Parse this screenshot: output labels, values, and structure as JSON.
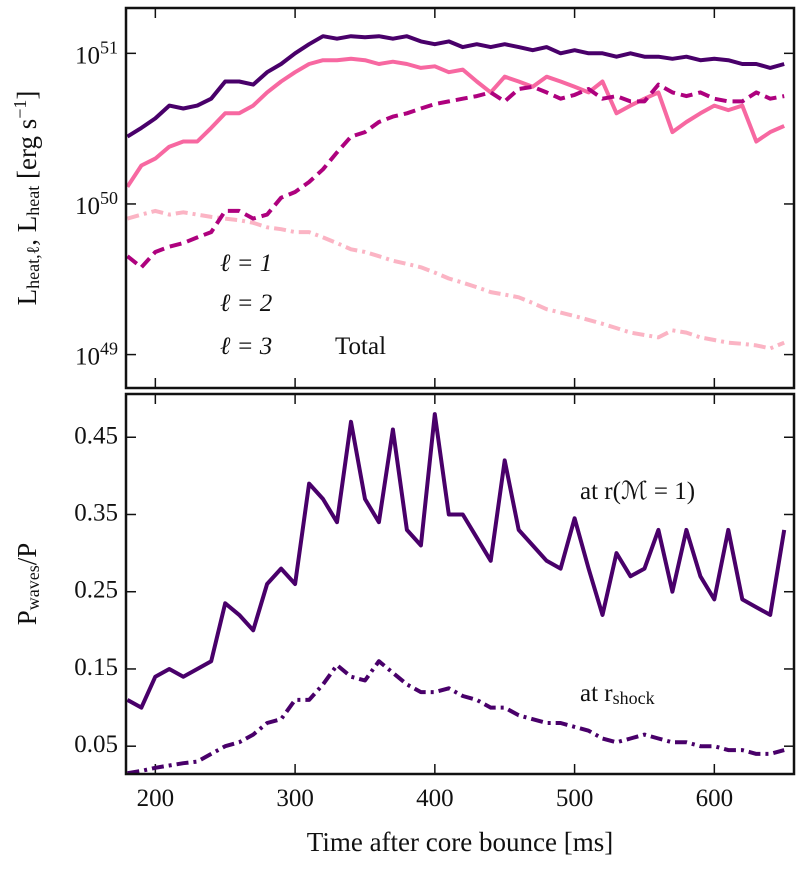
{
  "chart_data": [
    {
      "type": "line",
      "ylabel": "L_{heat,ℓ}, L_{heat} [erg s^{−1}]",
      "log_y": true,
      "xlim": [
        179,
        657
      ],
      "xticks": [
        200,
        300,
        400,
        500,
        600
      ],
      "ylim": [
        6e+48,
        2e+51
      ],
      "yticks": [
        {
          "value": 1e+49,
          "label": "10^{49}"
        },
        {
          "value": 1e+50,
          "label": "10^{50}"
        },
        {
          "value": 1e+51,
          "label": "10^{51}"
        }
      ],
      "x": [
        180,
        190,
        200,
        210,
        220,
        230,
        240,
        250,
        260,
        270,
        280,
        290,
        300,
        310,
        320,
        330,
        340,
        350,
        360,
        370,
        380,
        390,
        400,
        410,
        420,
        430,
        440,
        450,
        460,
        470,
        480,
        490,
        500,
        510,
        520,
        530,
        540,
        550,
        560,
        570,
        580,
        590,
        600,
        610,
        620,
        630,
        640,
        650
      ],
      "series": [
        {
          "name": "ℓ = 1",
          "color": "#fbb4c4",
          "linestyle": "dashdot",
          "values": [
            8e+49,
            8.5e+49,
            9e+49,
            8.5e+49,
            8.8e+49,
            8.5e+49,
            8.2e+49,
            8e+49,
            7.8e+49,
            7.5e+49,
            7e+49,
            6.8e+49,
            6.5e+49,
            6.5e+49,
            6e+49,
            5.5e+49,
            5e+49,
            4.8e+49,
            4.5e+49,
            4.2e+49,
            4e+49,
            3.8e+49,
            3.5e+49,
            3.2e+49,
            3e+49,
            2.8e+49,
            2.6e+49,
            2.5e+49,
            2.4e+49,
            2.2e+49,
            2e+49,
            1.9e+49,
            1.8e+49,
            1.7e+49,
            1.6e+49,
            1.5e+49,
            1.4e+49,
            1.35e+49,
            1.3e+49,
            1.45e+49,
            1.4e+49,
            1.3e+49,
            1.25e+49,
            1.2e+49,
            1.18e+49,
            1.15e+49,
            1.1e+49,
            1.2e+49
          ]
        },
        {
          "name": "ℓ = 2",
          "color": "#f768a1",
          "linestyle": "solid",
          "values": [
            1.3e+50,
            1.8e+50,
            2e+50,
            2.4e+50,
            2.6e+50,
            2.6e+50,
            3.2e+50,
            4e+50,
            4e+50,
            4.5e+50,
            5.5e+50,
            6.5e+50,
            7.5e+50,
            8.5e+50,
            9e+50,
            9e+50,
            9.2e+50,
            9e+50,
            8.5e+50,
            8.8e+50,
            8.5e+50,
            8e+50,
            8.2e+50,
            7.5e+50,
            7.8e+50,
            6.5e+50,
            5.5e+50,
            7e+50,
            6.5e+50,
            6e+50,
            7e+50,
            6.5e+50,
            6e+50,
            5.5e+50,
            6.5e+50,
            4e+50,
            4.5e+50,
            5e+50,
            5.5e+50,
            3e+50,
            3.5e+50,
            4e+50,
            4.5e+50,
            4.2e+50,
            4.5e+50,
            2.6e+50,
            3e+50,
            3.3e+50
          ]
        },
        {
          "name": "ℓ = 3",
          "color": "#ae017e",
          "linestyle": "dashed",
          "values": [
            4.5e+49,
            3.8e+49,
            4.8e+49,
            5.2e+49,
            5.5e+49,
            6e+49,
            6.5e+49,
            9e+49,
            9e+49,
            8e+49,
            8.5e+49,
            1.1e+50,
            1.2e+50,
            1.4e+50,
            1.7e+50,
            2.2e+50,
            2.8e+50,
            3e+50,
            3.5e+50,
            3.8e+50,
            4e+50,
            4.3e+50,
            4.6e+50,
            4.8e+50,
            5e+50,
            5.2e+50,
            5.5e+50,
            4.8e+50,
            5.8e+50,
            6e+50,
            5.5e+50,
            5e+50,
            5.3e+50,
            5.8e+50,
            5e+50,
            5.2e+50,
            4.8e+50,
            4.8e+50,
            6.2e+50,
            5.5e+50,
            5.2e+50,
            5.5e+50,
            5e+50,
            4.8e+50,
            4.8e+50,
            5.5e+50,
            5e+50,
            5.2e+50
          ]
        },
        {
          "name": "Total",
          "color": "#49006a",
          "linestyle": "solid",
          "values": [
            2.8e+50,
            3.2e+50,
            3.7e+50,
            4.5e+50,
            4.3e+50,
            4.5e+50,
            5e+50,
            6.5e+50,
            6.5e+50,
            6.2e+50,
            7.5e+50,
            8.5e+50,
            1e+51,
            1.15e+51,
            1.3e+51,
            1.25e+51,
            1.3e+51,
            1.28e+51,
            1.3e+51,
            1.25e+51,
            1.3e+51,
            1.2e+51,
            1.15e+51,
            1.2e+51,
            1.1e+51,
            1.15e+51,
            1.1e+51,
            1.15e+51,
            1.1e+51,
            1.05e+51,
            1.1e+51,
            1e+51,
            1.05e+51,
            1e+51,
            1e+51,
            9.5e+50,
            1e+51,
            9.5e+50,
            9.5e+50,
            9.2e+50,
            9.5e+50,
            9e+50,
            9.2e+50,
            9e+50,
            8.5e+50,
            8.5e+50,
            8e+50,
            8.5e+50
          ]
        }
      ]
    },
    {
      "type": "line",
      "xlabel": "Time after core bounce [ms]",
      "ylabel": "P_{waves}/P",
      "log_y": false,
      "xlim": [
        179,
        657
      ],
      "xticks": [
        200,
        300,
        400,
        500,
        600
      ],
      "ylim": [
        0.014,
        0.506
      ],
      "yticks": [
        0.05,
        0.15,
        0.25,
        0.35,
        0.45
      ],
      "x": [
        180,
        190,
        200,
        210,
        220,
        230,
        240,
        250,
        260,
        270,
        280,
        290,
        300,
        310,
        320,
        330,
        340,
        350,
        360,
        370,
        380,
        390,
        400,
        410,
        420,
        430,
        440,
        450,
        460,
        470,
        480,
        490,
        500,
        510,
        520,
        530,
        540,
        550,
        560,
        570,
        580,
        590,
        600,
        610,
        620,
        630,
        640,
        650
      ],
      "series": [
        {
          "name": "at r(ℳ = 1)",
          "color": "#49006a",
          "linestyle": "solid",
          "values": [
            0.11,
            0.1,
            0.14,
            0.15,
            0.14,
            0.15,
            0.16,
            0.235,
            0.22,
            0.2,
            0.26,
            0.28,
            0.26,
            0.39,
            0.37,
            0.34,
            0.47,
            0.37,
            0.34,
            0.46,
            0.33,
            0.31,
            0.48,
            0.35,
            0.35,
            0.32,
            0.29,
            0.42,
            0.33,
            0.31,
            0.29,
            0.28,
            0.345,
            0.28,
            0.22,
            0.3,
            0.27,
            0.28,
            0.33,
            0.25,
            0.33,
            0.27,
            0.24,
            0.33,
            0.24,
            0.23,
            0.22,
            0.33
          ]
        },
        {
          "name": "at r_{shock}",
          "color": "#49006a",
          "linestyle": "dashdot",
          "values": [
            0.015,
            0.018,
            0.022,
            0.025,
            0.028,
            0.03,
            0.04,
            0.05,
            0.055,
            0.065,
            0.08,
            0.085,
            0.11,
            0.11,
            0.13,
            0.155,
            0.14,
            0.135,
            0.16,
            0.145,
            0.13,
            0.12,
            0.12,
            0.125,
            0.115,
            0.11,
            0.1,
            0.1,
            0.09,
            0.085,
            0.08,
            0.08,
            0.075,
            0.07,
            0.06,
            0.055,
            0.06,
            0.065,
            0.06,
            0.055,
            0.055,
            0.05,
            0.05,
            0.045,
            0.045,
            0.04,
            0.04,
            0.045
          ]
        }
      ]
    }
  ]
}
